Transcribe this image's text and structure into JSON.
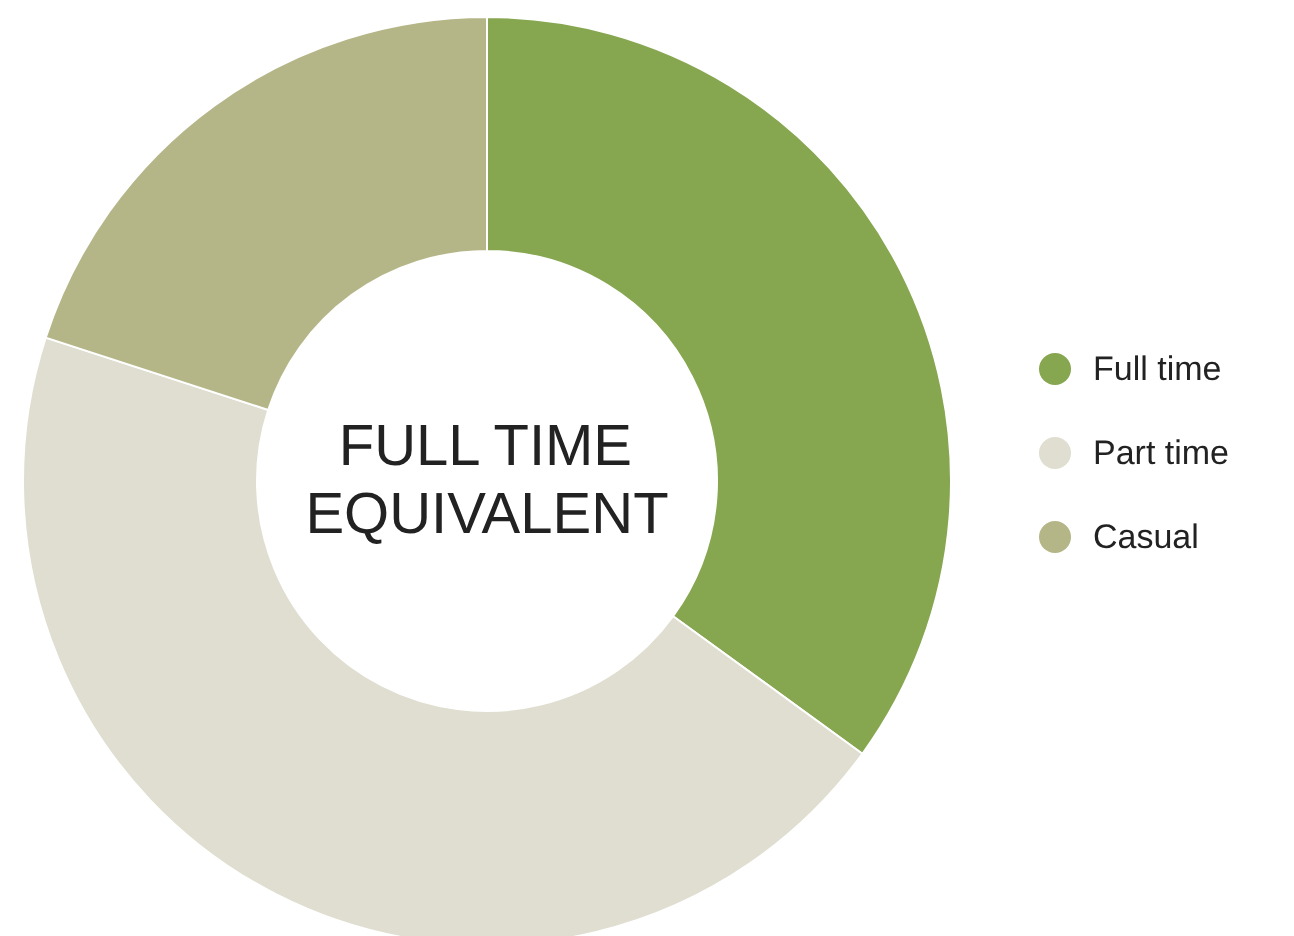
{
  "chart_data": {
    "type": "donut",
    "title": "FULL TIME\nEQUIVALENT",
    "categories": [
      "Full time",
      "Part time",
      "Casual"
    ],
    "values": [
      35,
      45,
      20
    ],
    "colors": [
      "#86a64f",
      "#dfded0",
      "#b5b688"
    ],
    "legend": "right"
  }
}
